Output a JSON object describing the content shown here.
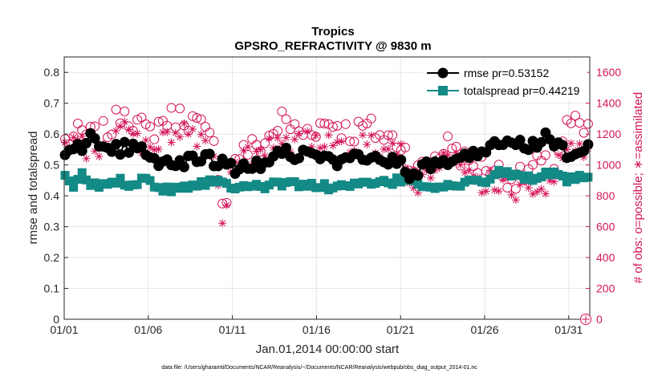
{
  "chart_data": {
    "type": "line",
    "title": "Tropics",
    "subtitle": "GPSRO_REFRACTIVITY @ 9830 m",
    "xlabel": "Jan.01,2014 00:00:00 start",
    "ylabel_left": "rmse and totalspread",
    "ylabel_right": "# of obs: o=possible; ∗=assimilated",
    "footnote": "data file: /Users/gharamti/Documents/NCAR/Reanalysis/~/Documents/NCAR/Reanalysis/webpub/obs_diag_output_2014-01.nc",
    "xlim_days": [
      0,
      31.25
    ],
    "ylim_left": [
      0,
      0.85
    ],
    "ylim_right": [
      0,
      1700
    ],
    "x_ticks": [
      {
        "day": 0,
        "label": "01/01"
      },
      {
        "day": 5,
        "label": "01/06"
      },
      {
        "day": 10,
        "label": "01/11"
      },
      {
        "day": 15,
        "label": "01/16"
      },
      {
        "day": 20,
        "label": "01/21"
      },
      {
        "day": 25,
        "label": "01/26"
      },
      {
        "day": 30,
        "label": "01/31"
      }
    ],
    "y_ticks_left": [
      "0",
      "0.1",
      "0.2",
      "0.3",
      "0.4",
      "0.5",
      "0.6",
      "0.7",
      "0.8"
    ],
    "y_ticks_right": [
      "0",
      "200",
      "400",
      "600",
      "800",
      "1000",
      "1200",
      "1400",
      "1600"
    ],
    "legend": {
      "placement": "top-right"
    },
    "series": [
      {
        "name": "rmse",
        "legend_label": "rmse pr=0.53152",
        "mean": 0.53152,
        "axis": "left",
        "color": "#000000",
        "marker": "filled-circle",
        "anchors_day": [
          0,
          0.5,
          1.2,
          1.5,
          2,
          2.5,
          3,
          4,
          5,
          5.5,
          6,
          7,
          8,
          9,
          10,
          11,
          12,
          13,
          14,
          15,
          16,
          17,
          18,
          19,
          20,
          20.6,
          21,
          22,
          23,
          24,
          25,
          26,
          27,
          28,
          28.8,
          29.5,
          30.5,
          31.2
        ],
        "anchors_value": [
          0.54,
          0.57,
          0.55,
          0.6,
          0.56,
          0.57,
          0.55,
          0.56,
          0.55,
          0.52,
          0.5,
          0.51,
          0.53,
          0.51,
          0.49,
          0.5,
          0.51,
          0.55,
          0.53,
          0.54,
          0.5,
          0.52,
          0.51,
          0.52,
          0.5,
          0.45,
          0.48,
          0.5,
          0.52,
          0.53,
          0.55,
          0.57,
          0.58,
          0.56,
          0.6,
          0.55,
          0.53,
          0.56
        ]
      },
      {
        "name": "totalspread",
        "legend_label": "totalspread pr=0.44219",
        "mean": 0.44219,
        "axis": "left",
        "color": "#138a86",
        "marker": "filled-square",
        "anchors_day": [
          0,
          0.5,
          1,
          1.5,
          2,
          3,
          4,
          5,
          5.5,
          6,
          7,
          8,
          9,
          10,
          11,
          12,
          13,
          14,
          15,
          16,
          17,
          18,
          19,
          20,
          20.5,
          21,
          22,
          23,
          24,
          25,
          26,
          27,
          28,
          29,
          30,
          31,
          31.2
        ],
        "anchors_value": [
          0.46,
          0.43,
          0.47,
          0.44,
          0.43,
          0.45,
          0.44,
          0.46,
          0.43,
          0.42,
          0.43,
          0.44,
          0.45,
          0.43,
          0.44,
          0.43,
          0.44,
          0.44,
          0.43,
          0.43,
          0.43,
          0.44,
          0.44,
          0.45,
          0.46,
          0.44,
          0.43,
          0.43,
          0.44,
          0.45,
          0.48,
          0.46,
          0.46,
          0.47,
          0.45,
          0.46,
          0.45
        ]
      },
      {
        "name": "possible",
        "axis": "right",
        "color": "#d4145a",
        "marker": "open-circle",
        "anchors_day": [
          0,
          1,
          2,
          3,
          3.5,
          4,
          5,
          6,
          7,
          8,
          9,
          9.5,
          10,
          11,
          12,
          13,
          14,
          15,
          16,
          17,
          18,
          19,
          20,
          21,
          22,
          23,
          24,
          25,
          26,
          27,
          28,
          29,
          30,
          31
        ],
        "anchors_value": [
          1150,
          1200,
          1180,
          1260,
          1380,
          1300,
          1200,
          1300,
          1320,
          1260,
          1100,
          700,
          1050,
          1100,
          1150,
          1300,
          1200,
          1250,
          1280,
          1200,
          1250,
          1180,
          1150,
          950,
          1050,
          1150,
          1000,
          1000,
          950,
          900,
          1000,
          980,
          1280,
          1200
        ]
      },
      {
        "name": "assimilated",
        "axis": "right",
        "color": "#d4145a",
        "marker": "asterisk",
        "anchors_day": [
          0,
          1,
          2,
          3,
          3.5,
          4,
          5,
          6,
          7,
          8,
          9,
          9.5,
          10,
          11,
          12,
          13,
          14,
          15,
          16,
          17,
          18,
          19,
          20,
          21,
          22,
          23,
          24,
          25,
          26,
          27,
          28,
          29,
          30,
          31
        ],
        "anchors_value": [
          1100,
          1130,
          1100,
          1180,
          1260,
          1180,
          1120,
          1200,
          1220,
          1160,
          1000,
          600,
          980,
          1050,
          1080,
          1200,
          1120,
          1160,
          1180,
          1120,
          1160,
          1100,
          1060,
          880,
          950,
          1050,
          900,
          900,
          850,
          820,
          900,
          880,
          1150,
          1080
        ]
      }
    ],
    "end_marker": {
      "label": "0",
      "color": "#d4145a"
    }
  }
}
